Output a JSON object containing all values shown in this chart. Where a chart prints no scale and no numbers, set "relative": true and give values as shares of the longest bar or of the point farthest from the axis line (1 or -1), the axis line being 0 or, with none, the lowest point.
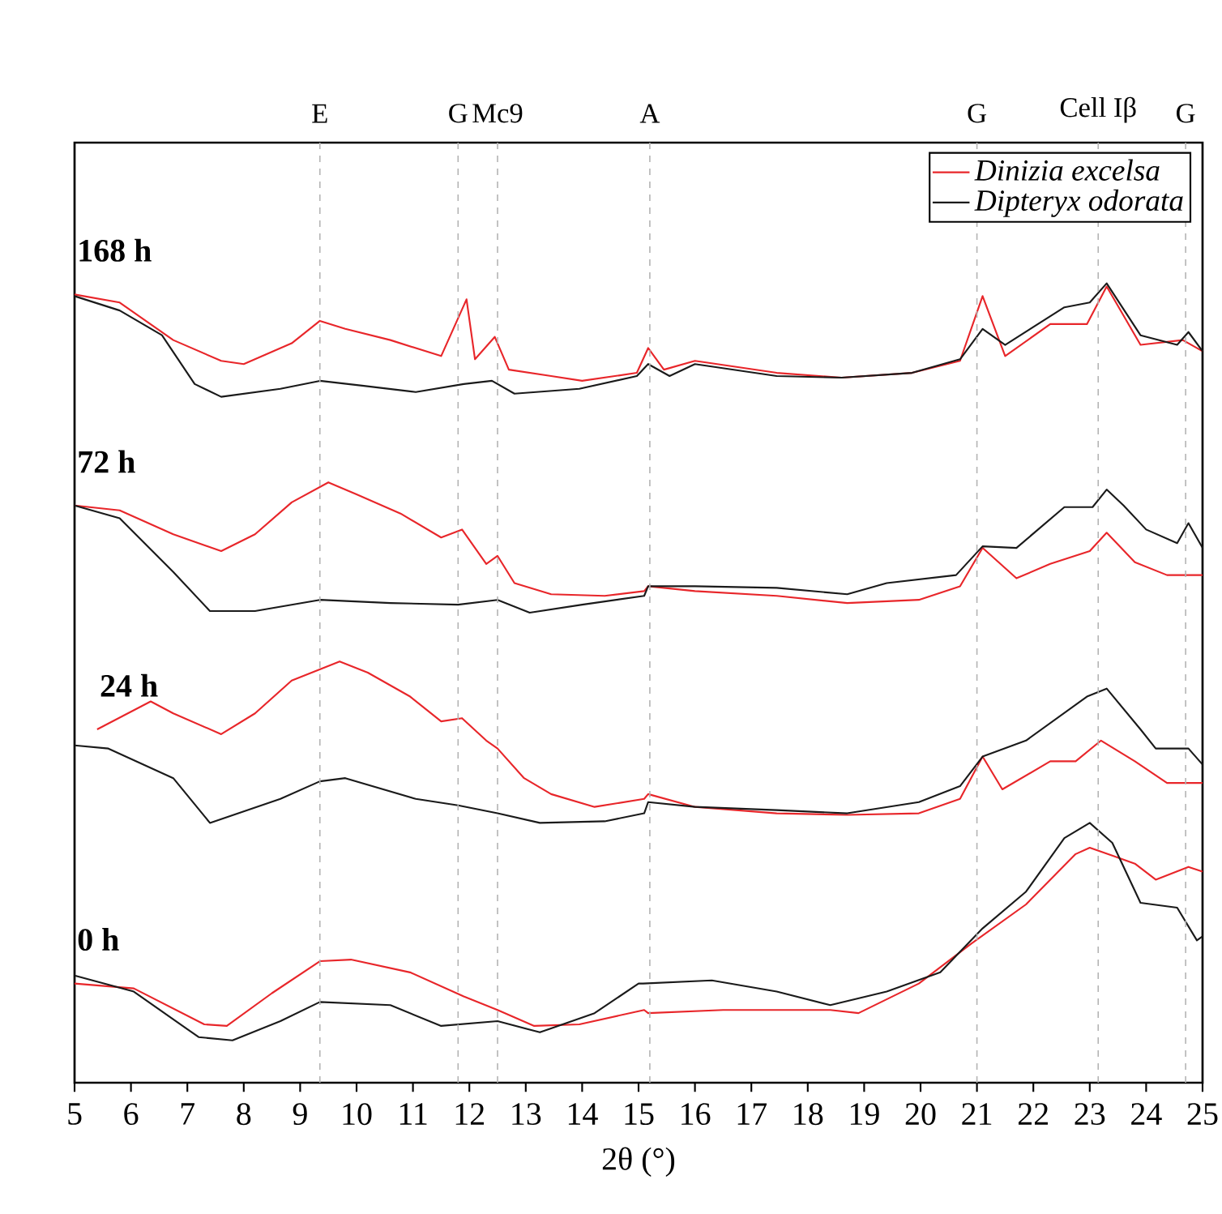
{
  "chart_data": {
    "type": "line",
    "relative": true,
    "xlabel": "2θ (°)",
    "xlim": [
      5,
      25
    ],
    "xticks": [
      5,
      6,
      7,
      8,
      9,
      10,
      11,
      12,
      13,
      14,
      15,
      16,
      17,
      18,
      19,
      20,
      21,
      22,
      23,
      24,
      25
    ],
    "tick_labels": "x",
    "legend": "top right",
    "series": [
      {
        "name": "Dinizia excelsa",
        "color": "#e8262a",
        "x": [
          5,
          5.8,
          6.75,
          7.6,
          8.0,
          8.85,
          9.35,
          9.8,
          10.6,
          11.5,
          11.95,
          12.1,
          12.45,
          12.7,
          13.45,
          14.0,
          14.97,
          15.17,
          15.45,
          16.0,
          17.45,
          18.6,
          19.85,
          20.7,
          21.1,
          21.5,
          22.3,
          22.95,
          23.3,
          23.9,
          24.65,
          25
        ],
        "values": [
          0.986,
          0.976,
          0.929,
          0.903,
          0.899,
          0.925,
          0.953,
          0.943,
          0.929,
          0.909,
          0.98,
          0.905,
          0.933,
          0.892,
          0.884,
          0.878,
          0.888,
          0.919,
          0.892,
          0.903,
          0.888,
          0.882,
          0.888,
          0.903,
          0.984,
          0.909,
          0.949,
          0.949,
          0.996,
          0.923,
          0.929,
          0.915
        ]
      },
      {
        "name": "Dipteryx odorata",
        "color": "#1a1a1a",
        "x": [
          5,
          5.8,
          6.55,
          7.13,
          7.6,
          8.65,
          9.35,
          10.1,
          11.05,
          11.9,
          12.4,
          12.8,
          13.95,
          14.97,
          15.17,
          15.55,
          16.0,
          17.45,
          18.6,
          19.85,
          20.7,
          21.1,
          21.5,
          22.55,
          23.0,
          23.3,
          23.9,
          24.55,
          24.75,
          25
        ],
        "values": [
          0.984,
          0.966,
          0.935,
          0.874,
          0.858,
          0.868,
          0.878,
          0.872,
          0.864,
          0.874,
          0.878,
          0.862,
          0.868,
          0.884,
          0.899,
          0.884,
          0.899,
          0.884,
          0.882,
          0.888,
          0.905,
          0.943,
          0.923,
          0.97,
          0.976,
          1,
          0.935,
          0.923,
          0.939,
          0.915
        ]
      },
      {
        "color": "#e8262a",
        "x": [
          5,
          5.8,
          6.75,
          7.6,
          8.2,
          8.85,
          9.5,
          10.0,
          10.78,
          11.5,
          11.87,
          12.3,
          12.5,
          12.8,
          13.45,
          14.4,
          15.1,
          15.17,
          16.0,
          17.45,
          18.7,
          19.97,
          20.7,
          21.1,
          21.7,
          22.3,
          23.0,
          23.3,
          23.8,
          24.37,
          25
        ],
        "values": [
          0.722,
          0.716,
          0.686,
          0.665,
          0.686,
          0.726,
          0.751,
          0.736,
          0.712,
          0.682,
          0.692,
          0.649,
          0.659,
          0.625,
          0.611,
          0.609,
          0.615,
          0.621,
          0.615,
          0.609,
          0.6,
          0.604,
          0.621,
          0.669,
          0.631,
          0.649,
          0.665,
          0.688,
          0.651,
          0.635,
          0.635
        ]
      },
      {
        "color": "#1a1a1a",
        "x": [
          5,
          5.8,
          6.75,
          7.4,
          8.2,
          9.35,
          10.6,
          11.8,
          12.5,
          13.07,
          14.0,
          15.1,
          15.17,
          16.0,
          17.45,
          18.7,
          19.4,
          20.63,
          21.1,
          21.7,
          22.55,
          23.05,
          23.3,
          23.6,
          24.0,
          24.55,
          24.75,
          25
        ],
        "values": [
          0.722,
          0.706,
          0.639,
          0.59,
          0.59,
          0.604,
          0.6,
          0.598,
          0.604,
          0.588,
          0.598,
          0.609,
          0.621,
          0.621,
          0.619,
          0.611,
          0.625,
          0.635,
          0.671,
          0.669,
          0.72,
          0.72,
          0.742,
          0.722,
          0.692,
          0.675,
          0.7,
          0.669
        ]
      },
      {
        "color": "#e8262a",
        "x": [
          5.4,
          6.35,
          6.75,
          7.6,
          8.2,
          8.85,
          9.7,
          10.2,
          10.95,
          11.5,
          11.87,
          12.3,
          12.5,
          12.97,
          13.45,
          14.22,
          15.1,
          15.17,
          16.0,
          17.45,
          18.7,
          19.97,
          20.7,
          21.1,
          21.45,
          22.3,
          22.75,
          23.2,
          23.8,
          24.37,
          25
        ],
        "values": [
          0.442,
          0.477,
          0.462,
          0.436,
          0.462,
          0.503,
          0.527,
          0.513,
          0.483,
          0.452,
          0.456,
          0.428,
          0.418,
          0.381,
          0.361,
          0.345,
          0.355,
          0.361,
          0.345,
          0.337,
          0.335,
          0.337,
          0.355,
          0.408,
          0.367,
          0.402,
          0.402,
          0.428,
          0.402,
          0.375,
          0.375
        ]
      },
      {
        "color": "#1a1a1a",
        "x": [
          5,
          5.6,
          6.75,
          7.4,
          8.65,
          9.35,
          9.8,
          11.05,
          11.8,
          12.5,
          13.25,
          14.4,
          15.1,
          15.17,
          16.0,
          17.45,
          18.7,
          19.97,
          20.7,
          21.1,
          21.87,
          22.95,
          23.3,
          23.9,
          24.17,
          24.75,
          25
        ],
        "values": [
          0.422,
          0.418,
          0.381,
          0.325,
          0.355,
          0.377,
          0.381,
          0.355,
          0.347,
          0.337,
          0.325,
          0.327,
          0.337,
          0.351,
          0.345,
          0.341,
          0.337,
          0.351,
          0.371,
          0.408,
          0.428,
          0.483,
          0.493,
          0.442,
          0.418,
          0.418,
          0.398
        ]
      },
      {
        "color": "#e8262a",
        "x": [
          5,
          6.05,
          7.3,
          7.7,
          8.5,
          9.35,
          9.9,
          10.95,
          11.9,
          12.5,
          13.15,
          13.95,
          15.1,
          15.17,
          16.5,
          18.4,
          18.9,
          19.97,
          20.9,
          21.87,
          22.75,
          23.0,
          23.4,
          23.8,
          24.17,
          24.75,
          25
        ],
        "values": [
          0.124,
          0.118,
          0.073,
          0.071,
          0.112,
          0.152,
          0.154,
          0.138,
          0.108,
          0.091,
          0.071,
          0.073,
          0.091,
          0.087,
          0.091,
          0.091,
          0.087,
          0.124,
          0.174,
          0.223,
          0.286,
          0.294,
          0.284,
          0.274,
          0.254,
          0.27,
          0.264
        ]
      },
      {
        "color": "#1a1a1a",
        "x": [
          5,
          6.05,
          7.2,
          7.8,
          8.65,
          9.35,
          10.6,
          11.5,
          12.5,
          13.25,
          14.22,
          15.0,
          15.08,
          16.3,
          17.45,
          18.4,
          19.4,
          20.35,
          21.1,
          21.87,
          22.55,
          23.0,
          23.4,
          23.9,
          24.55,
          24.9,
          25
        ],
        "values": [
          0.134,
          0.114,
          0.057,
          0.053,
          0.077,
          0.101,
          0.097,
          0.071,
          0.077,
          0.063,
          0.087,
          0.124,
          0.124,
          0.128,
          0.114,
          0.097,
          0.114,
          0.138,
          0.193,
          0.239,
          0.306,
          0.325,
          0.3,
          0.225,
          0.219,
          0.178,
          0.183
        ]
      }
    ],
    "annotations": [
      "168 h",
      "72 h",
      "24 h",
      "0 h"
    ],
    "ref_lines": [
      {
        "axis": "x",
        "value": 9.35,
        "label": "E",
        "color": "#b4b4b4",
        "line_style": "dashed"
      },
      {
        "axis": "x",
        "value": 11.8,
        "label": "G",
        "color": "#b4b4b4",
        "line_style": "dashed"
      },
      {
        "axis": "x",
        "value": 12.5,
        "label": "Mc9",
        "color": "#b4b4b4",
        "line_style": "dashed"
      },
      {
        "axis": "x",
        "value": 15.2,
        "label": "A",
        "color": "#b4b4b4",
        "line_style": "dashed"
      },
      {
        "axis": "x",
        "value": 21.0,
        "label": "G",
        "color": "#b4b4b4",
        "line_style": "dashed"
      },
      {
        "axis": "x",
        "value": 23.15,
        "label": "Cell Iβ",
        "color": "#b4b4b4",
        "line_style": "dashed"
      },
      {
        "axis": "x",
        "value": 24.7,
        "label": "G",
        "color": "#b4b4b4",
        "line_style": "dashed"
      }
    ]
  }
}
